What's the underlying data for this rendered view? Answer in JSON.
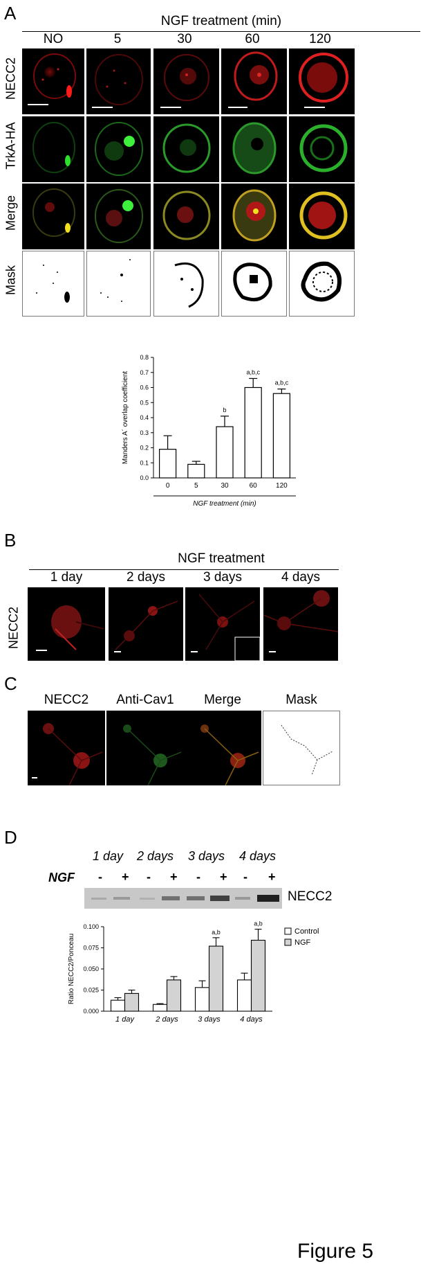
{
  "panel_a": {
    "letter": "A",
    "header": "NGF treatment (min)",
    "columns": [
      "NO",
      "5",
      "30",
      "60",
      "120"
    ],
    "rows": [
      "NECC2",
      "TrkA-HA",
      "Merge",
      "Mask"
    ]
  },
  "panel_b": {
    "letter": "B",
    "header": "NGF treatment",
    "columns": [
      "1 day",
      "2 days",
      "3 days",
      "4 days"
    ],
    "row_label": "NECC2"
  },
  "panel_c": {
    "letter": "C",
    "columns": [
      "NECC2",
      "Anti-Cav1",
      "Merge",
      "Mask"
    ]
  },
  "panel_d": {
    "letter": "D",
    "blot_days": [
      "1 day",
      "2 days",
      "3 days",
      "4 days"
    ],
    "ngf_label": "NGF",
    "lane_signs": [
      "-",
      "+",
      "-",
      "+",
      "-",
      "+",
      "-",
      "+"
    ],
    "blot_label": "NECC2"
  },
  "figure_label": "Figure 5",
  "chart_data": [
    {
      "type": "bar",
      "categories": [
        "0",
        "5",
        "30",
        "60",
        "120"
      ],
      "values": [
        0.19,
        0.09,
        0.34,
        0.6,
        0.56
      ],
      "errors": [
        0.09,
        0.02,
        0.07,
        0.06,
        0.03
      ],
      "annotations": [
        "",
        "",
        "b",
        "a,b,c",
        "a,b,c"
      ],
      "ylabel": "Manders A´ overlap coefficient",
      "xlabel": "NGF treatment (min)",
      "ylim": [
        0,
        0.8
      ],
      "yticks": [
        "0.0",
        "0.1",
        "0.2",
        "0.3",
        "0.4",
        "0.5",
        "0.6",
        "0.7",
        "0.8"
      ],
      "color": "#ffffff"
    },
    {
      "type": "bar",
      "categories": [
        "1 day",
        "2 days",
        "3 days",
        "4 days"
      ],
      "series": [
        {
          "name": "Control",
          "values": [
            0.013,
            0.008,
            0.028,
            0.037
          ],
          "errors": [
            0.003,
            0.001,
            0.008,
            0.008
          ],
          "color": "#ffffff"
        },
        {
          "name": "NGF",
          "values": [
            0.021,
            0.037,
            0.077,
            0.084
          ],
          "errors": [
            0.004,
            0.004,
            0.01,
            0.013
          ],
          "color": "#d3d3d3"
        }
      ],
      "annotations": [
        "",
        "",
        "a,b",
        "a,b"
      ],
      "ylabel": "Ratio NECC2/Ponceau",
      "ylim": [
        0,
        0.1
      ],
      "yticks": [
        "0.000",
        "0.025",
        "0.050",
        "0.075",
        "0.100"
      ],
      "legend_position": "right"
    }
  ]
}
